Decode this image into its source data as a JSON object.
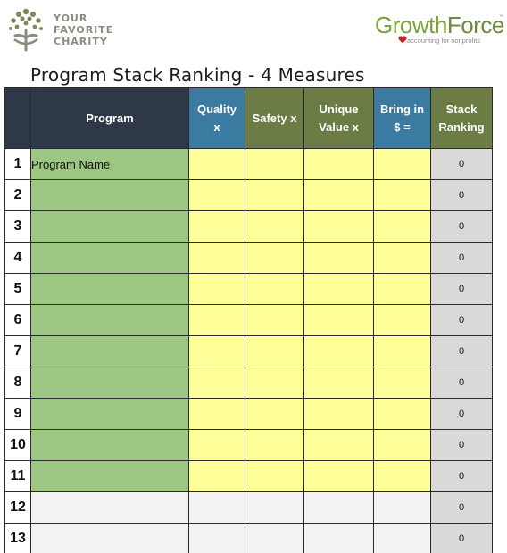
{
  "header": {
    "charity_lines": [
      "YOUR",
      "FAVORITE",
      "CHARITY"
    ],
    "brand_part1": "Growth",
    "brand_part2": "Force",
    "brand_tm": "™",
    "brand_tagline": "accounting for nonprofits",
    "title": "Program Stack Ranking - 4 Measures"
  },
  "columns": [
    {
      "key": "program",
      "label": "Program",
      "color": "#2e3848"
    },
    {
      "key": "quality",
      "label_lines": [
        "Quality",
        "x"
      ],
      "color": "#3b7ba1"
    },
    {
      "key": "safety",
      "label_lines": [
        "Safety x"
      ],
      "color": "#6b7c44"
    },
    {
      "key": "unique",
      "label_lines": [
        "Unique",
        "Value x"
      ],
      "color": "#6b7c44"
    },
    {
      "key": "bring",
      "label_lines": [
        "Bring in",
        "$ ="
      ],
      "color": "#3b7ba1"
    },
    {
      "key": "rank",
      "label_lines": [
        "Stack",
        "Ranking"
      ],
      "color": "#6b7c44"
    }
  ],
  "rows": [
    {
      "num": "1",
      "program": "Program Name",
      "rank": "0",
      "style": "active"
    },
    {
      "num": "2",
      "program": "",
      "rank": "0",
      "style": "active"
    },
    {
      "num": "3",
      "program": "",
      "rank": "0",
      "style": "active"
    },
    {
      "num": "4",
      "program": "",
      "rank": "0",
      "style": "active"
    },
    {
      "num": "5",
      "program": "",
      "rank": "0",
      "style": "active"
    },
    {
      "num": "6",
      "program": "",
      "rank": "0",
      "style": "active"
    },
    {
      "num": "7",
      "program": "",
      "rank": "0",
      "style": "active"
    },
    {
      "num": "8",
      "program": "",
      "rank": "0",
      "style": "active"
    },
    {
      "num": "9",
      "program": "",
      "rank": "0",
      "style": "active"
    },
    {
      "num": "10",
      "program": "",
      "rank": "0",
      "style": "active"
    },
    {
      "num": "11",
      "program": "",
      "rank": "0",
      "style": "active"
    },
    {
      "num": "12",
      "program": "",
      "rank": "0",
      "style": "blank"
    },
    {
      "num": "13",
      "program": "",
      "rank": "0",
      "style": "blank"
    }
  ]
}
